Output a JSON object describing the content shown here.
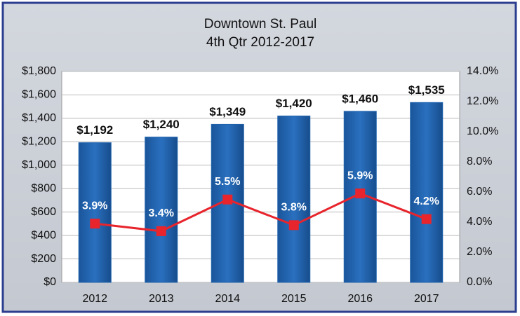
{
  "chart_data": {
    "type": "bar",
    "title": "Downtown St. Paul",
    "subtitle": "4th Qtr 2012-2017",
    "categories": [
      "2012",
      "2013",
      "2014",
      "2015",
      "2016",
      "2017"
    ],
    "series": [
      {
        "type": "bar",
        "color": "#1f62ad",
        "values": [
          1192,
          1240,
          1349,
          1420,
          1460,
          1535
        ],
        "value_labels": [
          "$1,192",
          "$1,240",
          "$1,349",
          "$1,420",
          "$1,460",
          "$1,535"
        ]
      },
      {
        "type": "line",
        "axis": "y2",
        "color": "#e8242c",
        "values": [
          3.9,
          3.4,
          5.5,
          3.8,
          5.9,
          4.2
        ],
        "value_labels": [
          "3.9%",
          "3.4%",
          "5.5%",
          "3.8%",
          "5.9%",
          "4.2%"
        ]
      }
    ],
    "ylim": [
      0,
      1800
    ],
    "yticks": [
      {
        "value": 0,
        "label": "$0"
      },
      {
        "value": 200,
        "label": "$200"
      },
      {
        "value": 400,
        "label": "$400"
      },
      {
        "value": 600,
        "label": "$600"
      },
      {
        "value": 800,
        "label": "$800"
      },
      {
        "value": 1000,
        "label": "$1,000"
      },
      {
        "value": 1200,
        "label": "$1,200"
      },
      {
        "value": 1400,
        "label": "$1,400"
      },
      {
        "value": 1600,
        "label": "$1,600"
      },
      {
        "value": 1800,
        "label": "$1,800"
      }
    ],
    "y2lim": [
      0,
      14
    ],
    "y2ticks": [
      {
        "value": 0,
        "label": "0.0%"
      },
      {
        "value": 2,
        "label": "2.0%"
      },
      {
        "value": 4,
        "label": "4.0%"
      },
      {
        "value": 6,
        "label": "6.0%"
      },
      {
        "value": 8,
        "label": "8.0%"
      },
      {
        "value": 10,
        "label": "10.0%"
      },
      {
        "value": 12,
        "label": "12.0%"
      },
      {
        "value": 14,
        "label": "14.0%"
      }
    ],
    "grid": true
  }
}
